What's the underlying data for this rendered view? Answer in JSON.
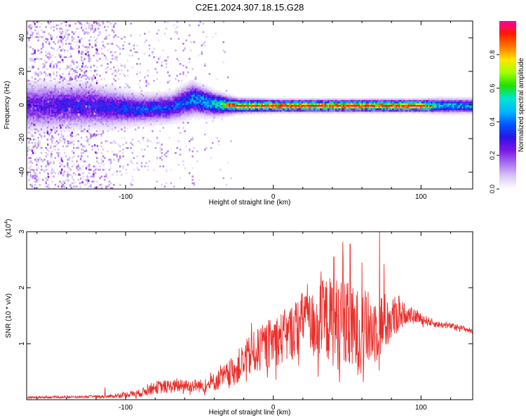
{
  "title": "C2E1.2024.307.18.15.G28",
  "colors": {
    "snr_line": "#e8302c",
    "palette": [
      "#ffffff",
      "#d9c6f5",
      "#a86ef0",
      "#7a16e6",
      "#2a14e6",
      "#0057ff",
      "#00b7ff",
      "#00e5d0",
      "#1fe000",
      "#a0ff00",
      "#ffe600",
      "#ff7a00",
      "#ff1a00",
      "#ff00a0"
    ]
  },
  "chart_data": [
    {
      "type": "heatmap",
      "name": "spectrogram",
      "xlabel": "Height of straight line (km)",
      "ylabel": "Frequency (Hz)",
      "xlim": [
        -167,
        135
      ],
      "ylim": [
        -50,
        50
      ],
      "xticks": [
        -100,
        0,
        100
      ],
      "yticks": [
        -40,
        -20,
        0,
        20,
        40
      ],
      "colorbar": {
        "label": "Normalized spectral amplitude",
        "range": [
          0,
          1
        ],
        "ticks": [
          "0.0",
          "0.2",
          "0.4",
          "0.6",
          "0.8"
        ]
      },
      "ridge": [
        {
          "x": -160,
          "center_hz": 0,
          "width_hz": 10,
          "amplitude": 0.25,
          "scatter": 0.9
        },
        {
          "x": -140,
          "center_hz": 0,
          "width_hz": 9,
          "amplitude": 0.3,
          "scatter": 0.9
        },
        {
          "x": -125,
          "center_hz": 0,
          "width_hz": 9,
          "amplitude": 0.3,
          "scatter": 0.8
        },
        {
          "x": -110,
          "center_hz": -1,
          "width_hz": 8,
          "amplitude": 0.3,
          "scatter": 0.5
        },
        {
          "x": -90,
          "center_hz": -2,
          "width_hz": 6,
          "amplitude": 0.35,
          "scatter": 0.3
        },
        {
          "x": -70,
          "center_hz": -1,
          "width_hz": 6,
          "amplitude": 0.35,
          "scatter": 0.2
        },
        {
          "x": -55,
          "center_hz": 4,
          "width_hz": 7,
          "amplitude": 0.4,
          "scatter": 0.2
        },
        {
          "x": -40,
          "center_hz": 1,
          "width_hz": 5,
          "amplitude": 0.5,
          "scatter": 0.1
        },
        {
          "x": -25,
          "center_hz": 0,
          "width_hz": 3,
          "amplitude": 0.7,
          "scatter": 0.05
        },
        {
          "x": 0,
          "center_hz": 0,
          "width_hz": 2.5,
          "amplitude": 0.85,
          "scatter": 0.03
        },
        {
          "x": 50,
          "center_hz": 0,
          "width_hz": 2.5,
          "amplitude": 0.85,
          "scatter": 0.03
        },
        {
          "x": 100,
          "center_hz": 0,
          "width_hz": 2.5,
          "amplitude": 0.85,
          "scatter": 0.03
        },
        {
          "x": 110,
          "center_hz": 0,
          "width_hz": 3,
          "amplitude": 0.5,
          "scatter": 0.02
        },
        {
          "x": 135,
          "center_hz": 0,
          "width_hz": 3,
          "amplitude": 0.45,
          "scatter": 0.02
        }
      ]
    },
    {
      "type": "line",
      "name": "snr",
      "xlabel": "Height of straight line (km)",
      "ylabel": "SNR (10 * v/v)",
      "y_multiplier": "(x10",
      "y_multiplier_exp": "4",
      "y_multiplier_close": ")",
      "xlim": [
        -167,
        135
      ],
      "ylim": [
        0,
        3
      ],
      "xticks": [
        -100,
        0,
        100
      ],
      "yticks": [
        1,
        2,
        3
      ],
      "envelope": {
        "x": [
          -167,
          -130,
          -110,
          -90,
          -80,
          -60,
          -45,
          -30,
          -15,
          0,
          10,
          20,
          22,
          25,
          35,
          45,
          55,
          65,
          70,
          80,
          88,
          95,
          110,
          125,
          135
        ],
        "mean": [
          0.04,
          0.05,
          0.06,
          0.12,
          0.22,
          0.25,
          0.25,
          0.45,
          0.8,
          1.05,
          1.15,
          1.4,
          1.7,
          1.3,
          1.45,
          1.35,
          1.2,
          1.25,
          1.3,
          1.45,
          1.55,
          1.5,
          1.35,
          1.3,
          1.22
        ],
        "noise": [
          0.02,
          0.02,
          0.03,
          0.07,
          0.12,
          0.12,
          0.12,
          0.25,
          0.38,
          0.45,
          0.5,
          0.55,
          0.35,
          0.6,
          0.75,
          0.85,
          0.8,
          0.7,
          0.65,
          0.45,
          0.2,
          0.12,
          0.06,
          0.05,
          0.05
        ]
      },
      "peaks": [
        {
          "x": -114,
          "y": 0.22
        },
        {
          "x": 23,
          "y": 2.07
        },
        {
          "x": 41,
          "y": 2.55
        },
        {
          "x": 47,
          "y": 2.82
        },
        {
          "x": 52,
          "y": 2.78
        },
        {
          "x": 60,
          "y": 2.45
        },
        {
          "x": 72,
          "y": 3.05
        },
        {
          "x": 75,
          "y": 2.42
        },
        {
          "x": 85,
          "y": 1.85
        },
        {
          "x": 95,
          "y": 1.55
        }
      ]
    }
  ]
}
